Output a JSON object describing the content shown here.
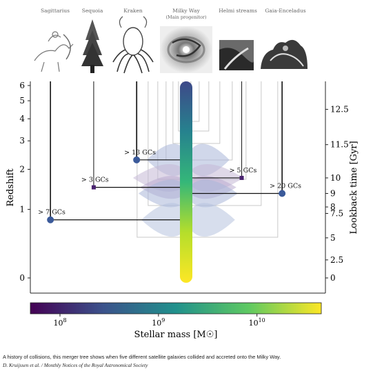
{
  "chart_data": {
    "type": "merger-tree",
    "ylabel_left": "Redshift",
    "ylabel_right": "Lookback time [Gyr]",
    "xlabel": "Stellar mass [M☉]",
    "xscale": "log",
    "xlim": [
      50000000,
      45000000000
    ],
    "left_ticks": [
      "0",
      "1",
      "2",
      "3",
      "4",
      "5",
      "6"
    ],
    "right_ticks": [
      "0",
      "2.5",
      "5",
      "7.5",
      "8",
      "9",
      "10",
      "11.5",
      "12.5"
    ],
    "colorbar_ticks": [
      "10^8",
      "10^9",
      "10^10"
    ],
    "colorbar_colors": [
      "#440154",
      "#3b528b",
      "#21918c",
      "#5ec962",
      "#fde725"
    ],
    "milky_way_mass": 2000000000,
    "progenitors": [
      {
        "name": "Sagittarius",
        "image_label": "Sagittarius",
        "mass": 80000000,
        "merger_redshift": 0.8,
        "gc_label": "> 7 GCs",
        "color": "#3b5a9a"
      },
      {
        "name": "Sequoia",
        "image_label": "Sequoia",
        "mass": 220000000,
        "merger_redshift": 1.5,
        "gc_label": "> 3 GCs",
        "color": "#4a2370"
      },
      {
        "name": "Kraken",
        "image_label": "Kraken",
        "mass": 600000000,
        "merger_redshift": 2.3,
        "gc_label": "> 13 GCs",
        "color": "#3b5a9a"
      },
      {
        "name": "Helmi streams",
        "image_label": "Helmi streams",
        "mass": 7000000000,
        "merger_redshift": 1.75,
        "gc_label": "> 5 GCs",
        "color": "#4a2370"
      },
      {
        "name": "Gaia-Enceladus",
        "image_label": "Gaia-Enceladus",
        "mass": 18000000000,
        "merger_redshift": 1.35,
        "gc_label": "> 20 GCs",
        "color": "#3b5a9a"
      }
    ],
    "main_image": {
      "label": "Milky Way",
      "sublabel": "(Main progenitor)"
    }
  },
  "caption": "A history of collisions, this merger tree shows when five different satellite galaxies collided and accreted onto the Milky Way.",
  "credit": "D. Kruijssen et al. / Monthly Notices of the Royal Astronomical Society"
}
